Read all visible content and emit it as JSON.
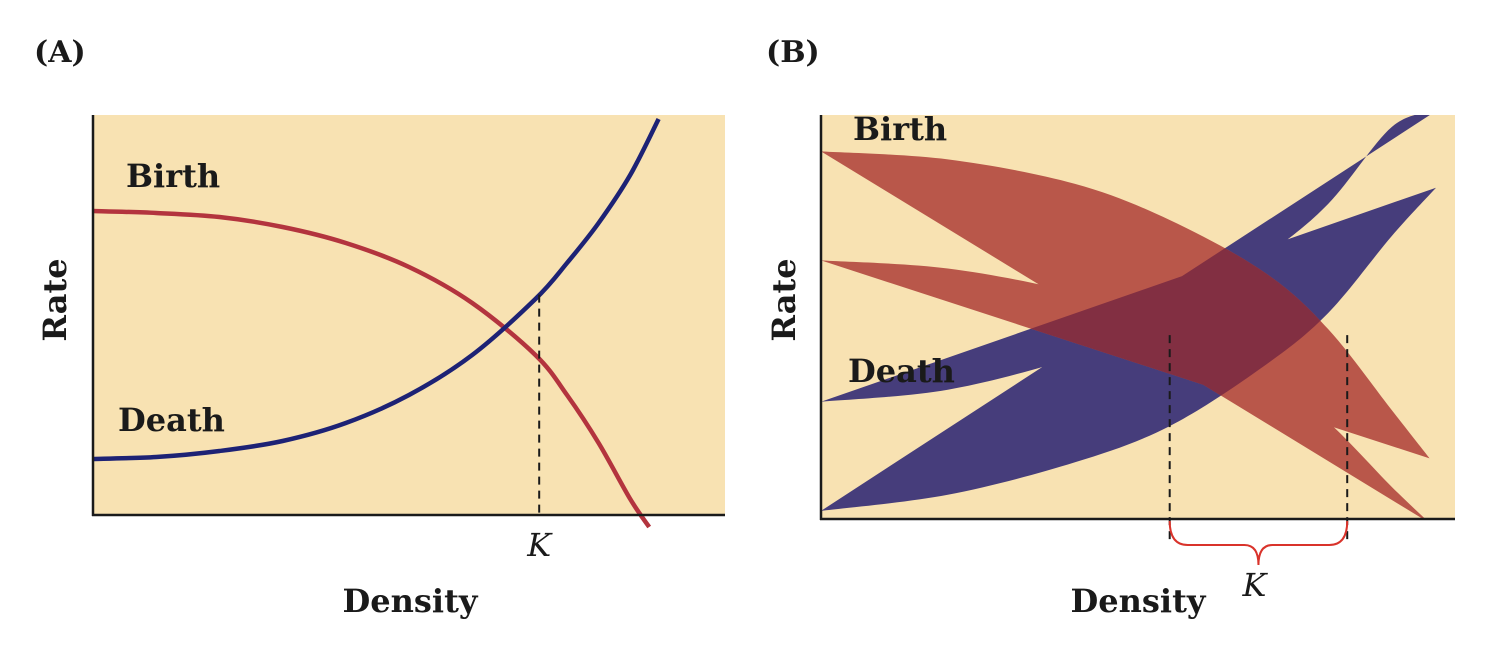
{
  "colors": {
    "background": "#f8e2b2",
    "birth": "#b3343e",
    "death": "#1d2275",
    "birth_band": "#b9574a",
    "death_band": "#463d7b",
    "overlap": "#822f42",
    "brace": "#d9332b",
    "axis": "#1a1a1a"
  },
  "chart_data": [
    {
      "type": "line",
      "panel_label": "(A)",
      "xlabel": "Density",
      "ylabel": "Rate",
      "xlim": [
        0,
        1
      ],
      "ylim": [
        0,
        1
      ],
      "grid": false,
      "series": [
        {
          "name": "Birth",
          "style": "line",
          "x": [
            0.0,
            0.1,
            0.2,
            0.3,
            0.4,
            0.5,
            0.6,
            0.7,
            0.75,
            0.8,
            0.85,
            0.88
          ],
          "y": [
            0.76,
            0.755,
            0.745,
            0.72,
            0.68,
            0.62,
            0.53,
            0.4,
            0.3,
            0.18,
            0.04,
            -0.03
          ]
        },
        {
          "name": "Death",
          "style": "line",
          "x": [
            0.0,
            0.1,
            0.2,
            0.3,
            0.4,
            0.5,
            0.6,
            0.7,
            0.75,
            0.8,
            0.85,
            0.895
          ],
          "y": [
            0.14,
            0.145,
            0.16,
            0.185,
            0.23,
            0.3,
            0.4,
            0.54,
            0.63,
            0.73,
            0.85,
            0.99
          ]
        }
      ],
      "annotations": [
        {
          "type": "vline",
          "label": "K",
          "x": 0.706
        }
      ]
    },
    {
      "type": "area",
      "panel_label": "(B)",
      "xlabel": "Density",
      "ylabel": "Rate",
      "xlim": [
        0,
        1
      ],
      "ylim": [
        0,
        1
      ],
      "grid": false,
      "series": [
        {
          "name": "Birth",
          "style": "band",
          "x": [
            0.0,
            0.2,
            0.4,
            0.55,
            0.7,
            0.8,
            0.9,
            0.96
          ],
          "y_low": [
            0.64,
            0.62,
            0.56,
            0.48,
            0.36,
            0.24,
            0.08,
            -0.01
          ],
          "y_high": [
            0.91,
            0.89,
            0.83,
            0.74,
            0.61,
            0.47,
            0.27,
            0.15
          ]
        },
        {
          "name": "Death",
          "style": "band",
          "x": [
            0.0,
            0.2,
            0.4,
            0.55,
            0.7,
            0.8,
            0.9,
            0.97
          ],
          "y_low": [
            0.02,
            0.06,
            0.14,
            0.23,
            0.38,
            0.51,
            0.7,
            0.82
          ],
          "y_high": [
            0.29,
            0.32,
            0.4,
            0.49,
            0.65,
            0.78,
            0.97,
            1.01
          ]
        }
      ],
      "annotations": [
        {
          "type": "vline",
          "x": 0.55
        },
        {
          "type": "vline",
          "x": 0.83
        },
        {
          "type": "brace",
          "label": "K",
          "x_range": [
            0.55,
            0.83
          ]
        }
      ]
    }
  ]
}
